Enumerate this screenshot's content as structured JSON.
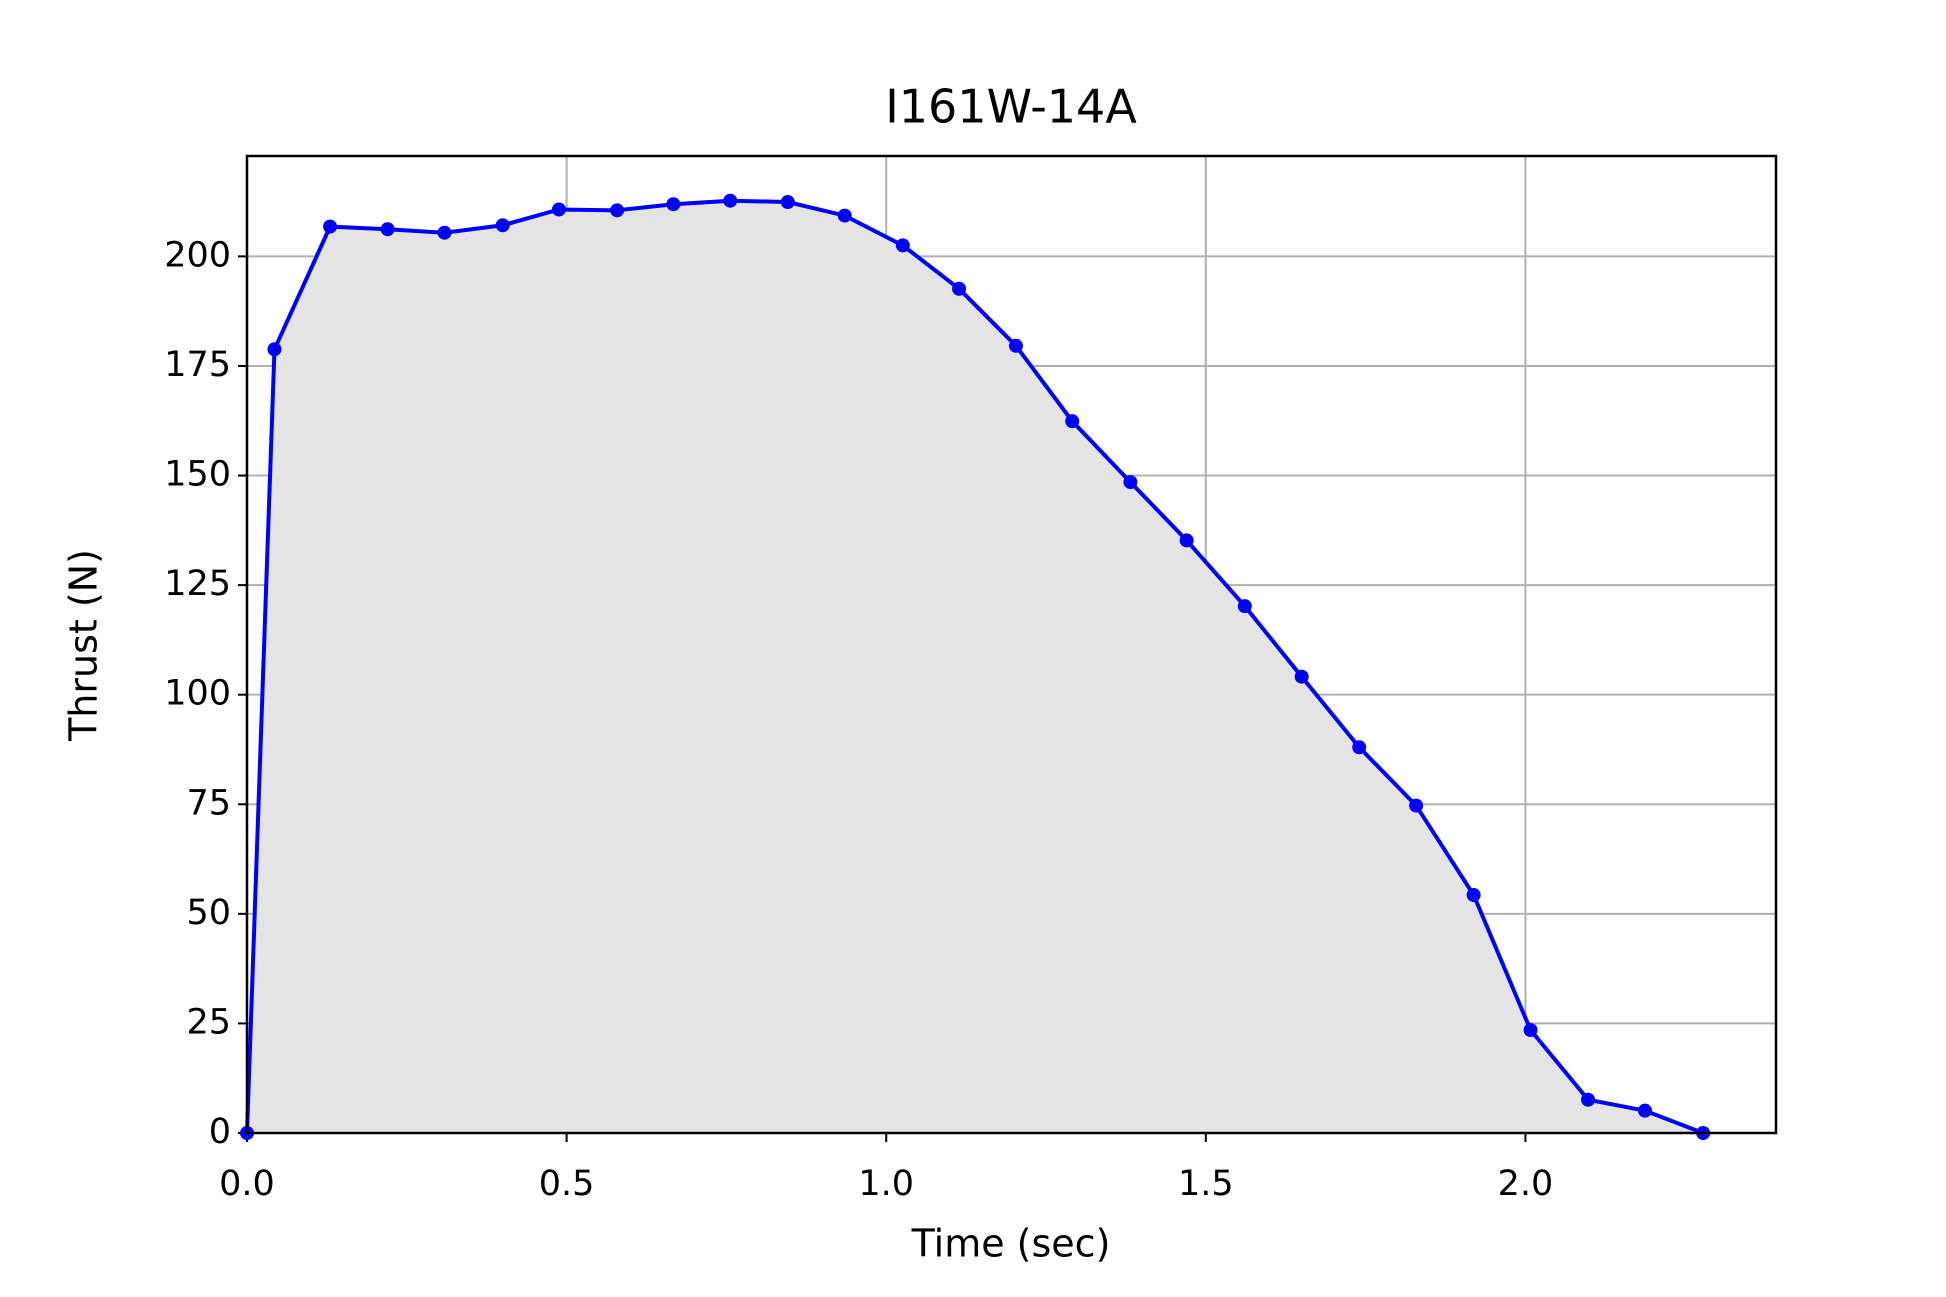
{
  "chart_data": {
    "type": "line",
    "title": "I161W-14A",
    "x_label": "Time (sec)",
    "y_label": "Thrust (N)",
    "x": [
      0,
      0.043,
      0.13,
      0.22,
      0.309,
      0.4,
      0.488,
      0.579,
      0.667,
      0.756,
      0.846,
      0.935,
      1.026,
      1.114,
      1.203,
      1.291,
      1.382,
      1.47,
      1.561,
      1.65,
      1.74,
      1.829,
      1.919,
      2.008,
      2.098,
      2.187,
      2.278
    ],
    "series": [
      {
        "color": "#0000ff",
        "fill": "#e4e4e4",
        "values": [
          0,
          178.8,
          206.8,
          206.2,
          205.4,
          207.1,
          210.7,
          210.5,
          211.9,
          212.7,
          212.4,
          209.3,
          202.5,
          192.6,
          179.6,
          162.4,
          148.5,
          135.2,
          120.2,
          104.1,
          88.0,
          74.7,
          54.3,
          23.5,
          7.6,
          5.1,
          0
        ]
      }
    ],
    "xlim": [
      0,
      2.392
    ],
    "ylim": [
      0,
      222.9
    ],
    "xticks": [
      {
        "value": 0,
        "label": "0.0"
      },
      0.5,
      {
        "value": 1,
        "label": "1.0"
      },
      1.5,
      {
        "value": 2,
        "label": "2.0"
      }
    ],
    "yticks": [
      0,
      25,
      50,
      75,
      100,
      125,
      150,
      175,
      200
    ],
    "grid": true
  }
}
